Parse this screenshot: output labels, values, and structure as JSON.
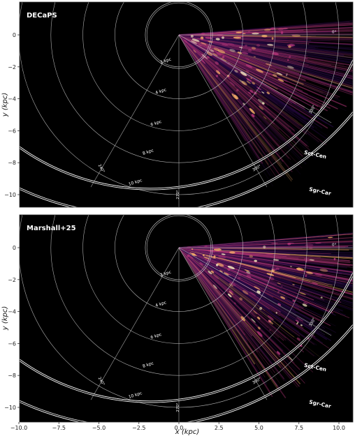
{
  "chart_data": [
    {
      "type": "heatmap",
      "title": "DECaPS",
      "xlabel": "x (kpc)",
      "ylabel": "y (kpc)",
      "xlim": [
        -10.0,
        11.0
      ],
      "ylim": [
        -11.0,
        1.3
      ],
      "yticks": [
        0,
        -2,
        -4,
        -6,
        -8,
        -10
      ],
      "xticks": [],
      "rings_kpc": [
        2,
        4,
        6,
        8,
        10
      ],
      "ring_labels": [
        "2 kpc",
        "4 kpc",
        "6 kpc",
        "8 kpc",
        "10 kpc"
      ],
      "angle_labels": [
        "0°",
        "330°",
        "300°",
        "270°",
        "240°"
      ],
      "arms": [
        "Sct-Cen",
        "Sgr-Car"
      ]
    },
    {
      "type": "heatmap",
      "title": "Marshall+25",
      "xlabel": "x (kpc)",
      "ylabel": "y (kpc)",
      "xlim": [
        -10.0,
        11.0
      ],
      "ylim": [
        -11.0,
        1.3
      ],
      "yticks": [
        0,
        -2,
        -4,
        -6,
        -8,
        -10
      ],
      "xticks": [
        "−10.0",
        "−7.5",
        "−5.0",
        "−2.5",
        "0.0",
        "2.5",
        "5.0",
        "7.5",
        "10.0"
      ],
      "xtick_values": [
        -10.0,
        -7.5,
        -5.0,
        -2.5,
        0.0,
        2.5,
        5.0,
        7.5,
        10.0
      ],
      "rings_kpc": [
        2,
        4,
        6,
        8,
        10
      ],
      "ring_labels": [
        "2 kpc",
        "4 kpc",
        "6 kpc",
        "8 kpc",
        "10 kpc"
      ],
      "angle_labels": [
        "0°",
        "330°",
        "300°",
        "270°",
        "240°"
      ],
      "arms": [
        "Sct-Cen",
        "Sgr-Car"
      ]
    }
  ],
  "colors": {
    "background": "#000000",
    "grid": "#cfcfcf",
    "map_low": "#2a0b4a",
    "map_mid": "#b5367a",
    "map_high": "#fcb56a",
    "map_peak": "#fff3c4"
  }
}
